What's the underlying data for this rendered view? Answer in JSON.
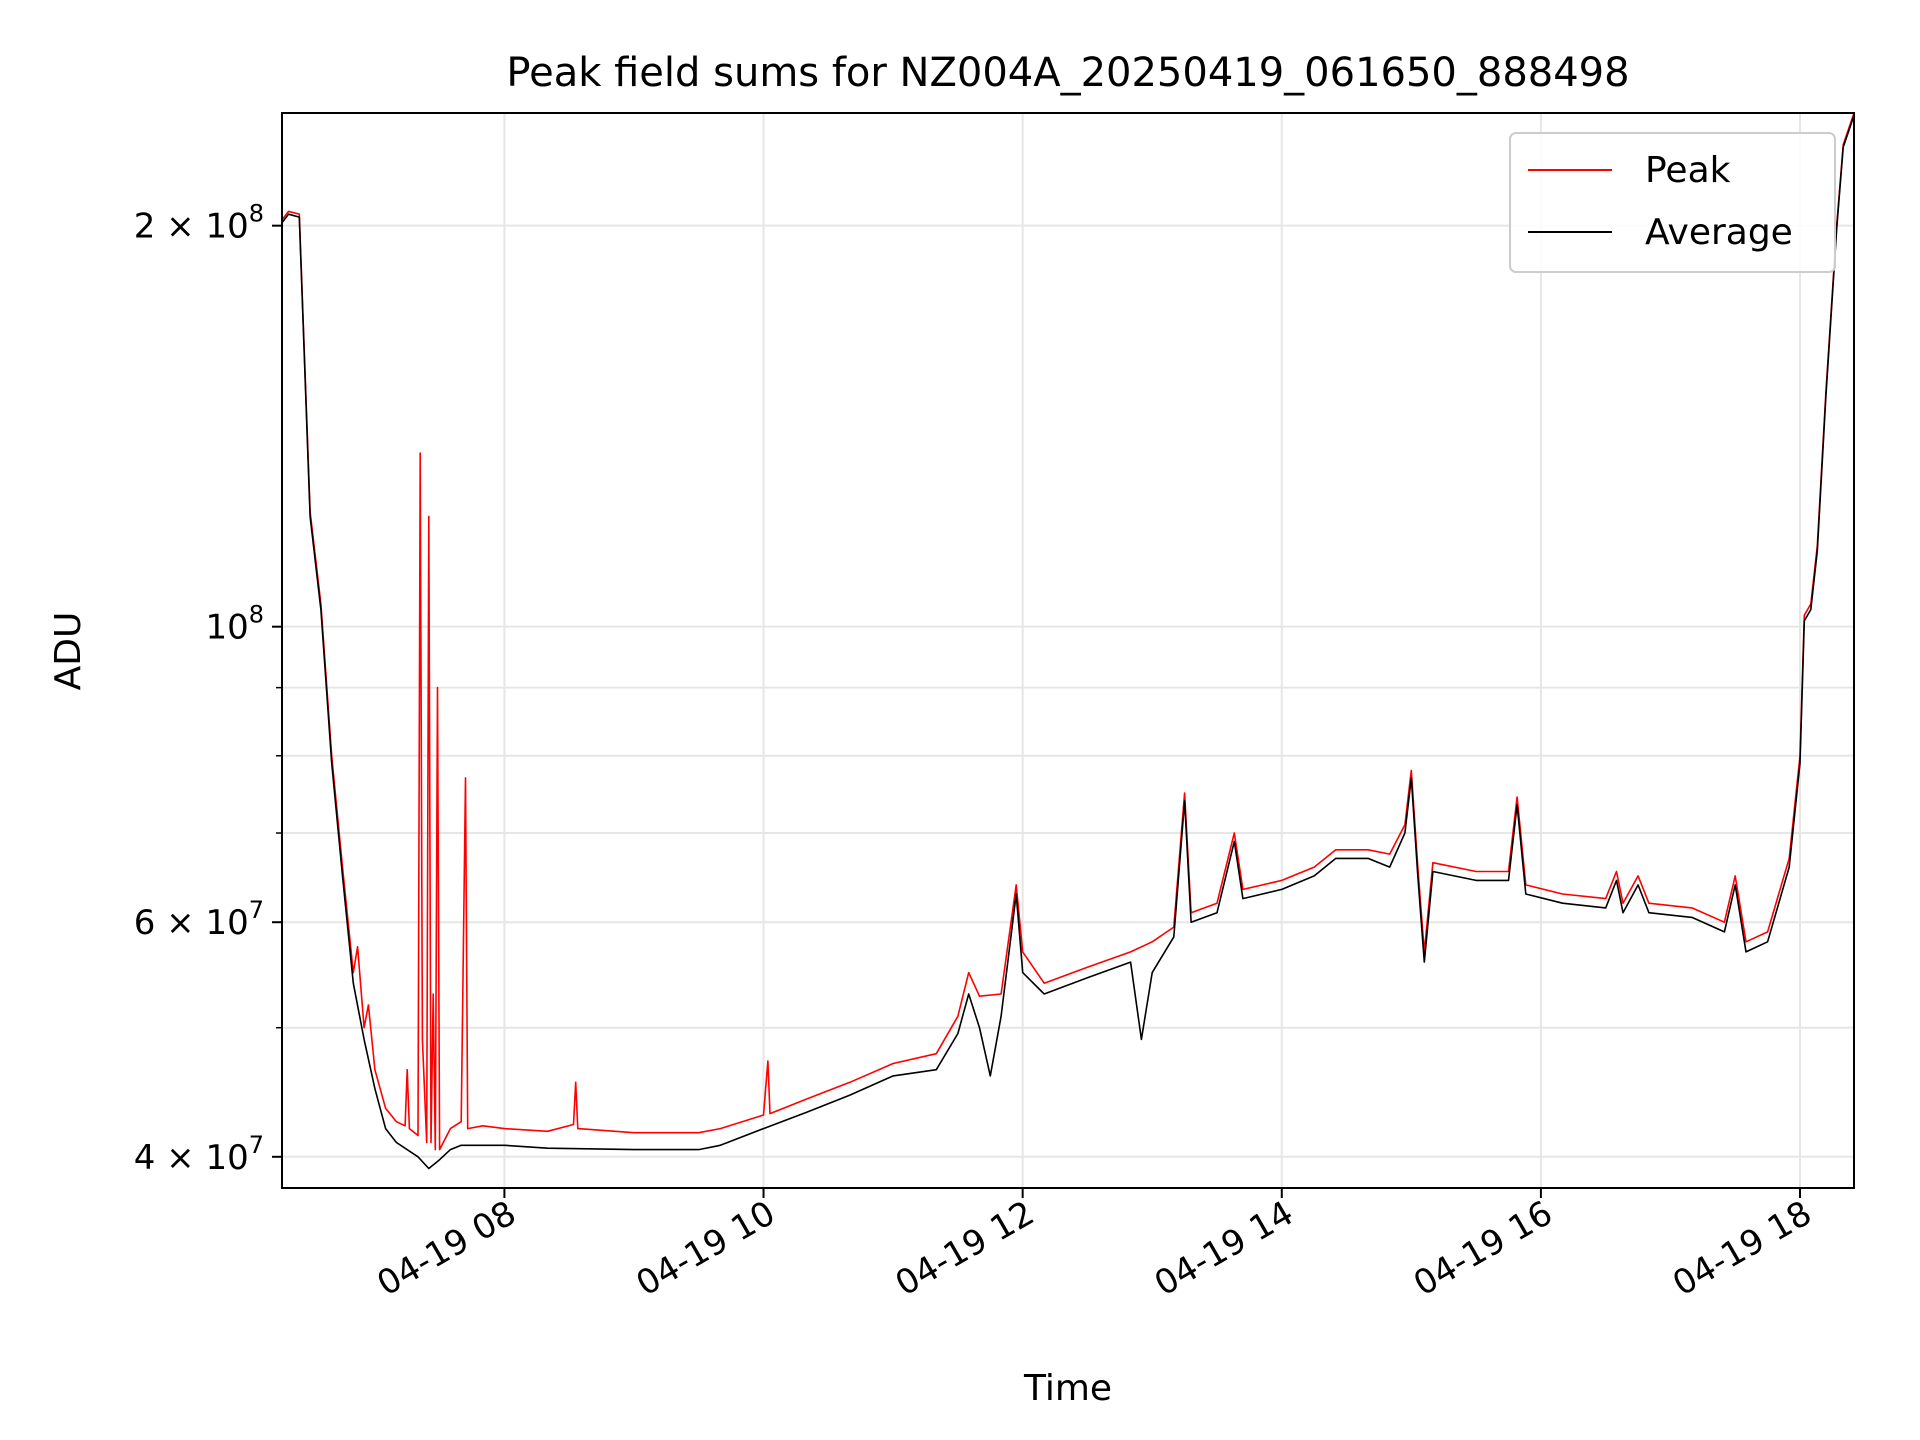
{
  "chart_data": {
    "type": "line",
    "title": "Peak field sums for NZ004A_20250419_061650_888498",
    "xlabel": "Time",
    "ylabel": "ADU",
    "y_scale": "log",
    "grid": true,
    "legend_position": "top-right",
    "x_range": [
      "2025-04-19 06:17",
      "2025-04-19 18:25"
    ],
    "y_range": [
      37900000,
      243000000
    ],
    "x_ticks": [
      {
        "time": "2025-04-19 08:00",
        "label": "04-19 08"
      },
      {
        "time": "2025-04-19 10:00",
        "label": "04-19 10"
      },
      {
        "time": "2025-04-19 12:00",
        "label": "04-19 12"
      },
      {
        "time": "2025-04-19 14:00",
        "label": "04-19 14"
      },
      {
        "time": "2025-04-19 16:00",
        "label": "04-19 16"
      },
      {
        "time": "2025-04-19 18:00",
        "label": "04-19 18"
      }
    ],
    "y_ticks": [
      {
        "value": 40000000,
        "base": "4",
        "exp": "7",
        "times": true
      },
      {
        "value": 60000000,
        "base": "6",
        "exp": "7",
        "times": true
      },
      {
        "value": 100000000,
        "base": "10",
        "exp": "8",
        "times": false
      },
      {
        "value": 200000000,
        "base": "2",
        "exp": "8",
        "times": true
      }
    ],
    "y_minor_ticks": [
      50000000,
      70000000,
      80000000,
      90000000
    ],
    "series": [
      {
        "name": "Peak",
        "color": "#ff0000",
        "points": [
          [
            "2025-04-19 06:17",
            202000000
          ],
          [
            "2025-04-19 06:20",
            205000000
          ],
          [
            "2025-04-19 06:25",
            204000000
          ],
          [
            "2025-04-19 06:30",
            122000000
          ],
          [
            "2025-04-19 06:35",
            104000000
          ],
          [
            "2025-04-19 06:40",
            80000000
          ],
          [
            "2025-04-19 06:45",
            66000000
          ],
          [
            "2025-04-19 06:50",
            55000000
          ],
          [
            "2025-04-19 06:52",
            57500000
          ],
          [
            "2025-04-19 06:55",
            50000000
          ],
          [
            "2025-04-19 06:57",
            52000000
          ],
          [
            "2025-04-19 07:00",
            46500000
          ],
          [
            "2025-04-19 07:05",
            43500000
          ],
          [
            "2025-04-19 07:10",
            42500000
          ],
          [
            "2025-04-19 07:14",
            42200000
          ],
          [
            "2025-04-19 07:15",
            46500000
          ],
          [
            "2025-04-19 07:16",
            42000000
          ],
          [
            "2025-04-19 07:20",
            41500000
          ],
          [
            "2025-04-19 07:21",
            135000000
          ],
          [
            "2025-04-19 07:22",
            49000000
          ],
          [
            "2025-04-19 07:24",
            41000000
          ],
          [
            "2025-04-19 07:25",
            121000000
          ],
          [
            "2025-04-19 07:26",
            41000000
          ],
          [
            "2025-04-19 07:27",
            53000000
          ],
          [
            "2025-04-19 07:28",
            40500000
          ],
          [
            "2025-04-19 07:29",
            90000000
          ],
          [
            "2025-04-19 07:30",
            40500000
          ],
          [
            "2025-04-19 07:35",
            42000000
          ],
          [
            "2025-04-19 07:40",
            42500000
          ],
          [
            "2025-04-19 07:42",
            77000000
          ],
          [
            "2025-04-19 07:43",
            42000000
          ],
          [
            "2025-04-19 07:50",
            42200000
          ],
          [
            "2025-04-19 08:00",
            42000000
          ],
          [
            "2025-04-19 08:20",
            41800000
          ],
          [
            "2025-04-19 08:32",
            42300000
          ],
          [
            "2025-04-19 08:33",
            45500000
          ],
          [
            "2025-04-19 08:34",
            42000000
          ],
          [
            "2025-04-19 09:00",
            41700000
          ],
          [
            "2025-04-19 09:30",
            41700000
          ],
          [
            "2025-04-19 09:40",
            42000000
          ],
          [
            "2025-04-19 10:00",
            43000000
          ],
          [
            "2025-04-19 10:02",
            47200000
          ],
          [
            "2025-04-19 10:03",
            43100000
          ],
          [
            "2025-04-19 10:20",
            44200000
          ],
          [
            "2025-04-19 10:40",
            45500000
          ],
          [
            "2025-04-19 11:00",
            47000000
          ],
          [
            "2025-04-19 11:20",
            47800000
          ],
          [
            "2025-04-19 11:30",
            51000000
          ],
          [
            "2025-04-19 11:35",
            55000000
          ],
          [
            "2025-04-19 11:40",
            52800000
          ],
          [
            "2025-04-19 11:50",
            53000000
          ],
          [
            "2025-04-19 11:57",
            64000000
          ],
          [
            "2025-04-19 12:00",
            57000000
          ],
          [
            "2025-04-19 12:10",
            54000000
          ],
          [
            "2025-04-19 12:30",
            55500000
          ],
          [
            "2025-04-19 12:50",
            57000000
          ],
          [
            "2025-04-19 13:00",
            58000000
          ],
          [
            "2025-04-19 13:10",
            59500000
          ],
          [
            "2025-04-19 13:15",
            75000000
          ],
          [
            "2025-04-19 13:18",
            61000000
          ],
          [
            "2025-04-19 13:30",
            62000000
          ],
          [
            "2025-04-19 13:38",
            70000000
          ],
          [
            "2025-04-19 13:42",
            63500000
          ],
          [
            "2025-04-19 14:00",
            64500000
          ],
          [
            "2025-04-19 14:15",
            66000000
          ],
          [
            "2025-04-19 14:25",
            68000000
          ],
          [
            "2025-04-19 14:40",
            68000000
          ],
          [
            "2025-04-19 14:50",
            67500000
          ],
          [
            "2025-04-19 14:57",
            71000000
          ],
          [
            "2025-04-19 15:00",
            78000000
          ],
          [
            "2025-04-19 15:03",
            66000000
          ],
          [
            "2025-04-19 15:06",
            57000000
          ],
          [
            "2025-04-19 15:10",
            66500000
          ],
          [
            "2025-04-19 15:30",
            65500000
          ],
          [
            "2025-04-19 15:45",
            65500000
          ],
          [
            "2025-04-19 15:49",
            74500000
          ],
          [
            "2025-04-19 15:53",
            64000000
          ],
          [
            "2025-04-19 16:10",
            63000000
          ],
          [
            "2025-04-19 16:30",
            62500000
          ],
          [
            "2025-04-19 16:35",
            65500000
          ],
          [
            "2025-04-19 16:38",
            62000000
          ],
          [
            "2025-04-19 16:45",
            65000000
          ],
          [
            "2025-04-19 16:50",
            62000000
          ],
          [
            "2025-04-19 17:10",
            61500000
          ],
          [
            "2025-04-19 17:25",
            60000000
          ],
          [
            "2025-04-19 17:30",
            65000000
          ],
          [
            "2025-04-19 17:35",
            58000000
          ],
          [
            "2025-04-19 17:45",
            59000000
          ],
          [
            "2025-04-19 17:55",
            67000000
          ],
          [
            "2025-04-19 18:00",
            80000000
          ],
          [
            "2025-04-19 18:02",
            102000000
          ],
          [
            "2025-04-19 18:05",
            104000000
          ],
          [
            "2025-04-19 18:08",
            115000000
          ],
          [
            "2025-04-19 18:12",
            150000000
          ],
          [
            "2025-04-19 18:17",
            200000000
          ],
          [
            "2025-04-19 18:20",
            230000000
          ],
          [
            "2025-04-19 18:25",
            243000000
          ]
        ]
      },
      {
        "name": "Average",
        "color": "#000000",
        "points": [
          [
            "2025-04-19 06:17",
            201000000
          ],
          [
            "2025-04-19 06:20",
            204000000
          ],
          [
            "2025-04-19 06:25",
            203000000
          ],
          [
            "2025-04-19 06:30",
            121000000
          ],
          [
            "2025-04-19 06:35",
            103000000
          ],
          [
            "2025-04-19 06:40",
            79000000
          ],
          [
            "2025-04-19 06:45",
            65000000
          ],
          [
            "2025-04-19 06:50",
            54000000
          ],
          [
            "2025-04-19 06:55",
            49000000
          ],
          [
            "2025-04-19 07:00",
            45000000
          ],
          [
            "2025-04-19 07:05",
            42000000
          ],
          [
            "2025-04-19 07:10",
            41000000
          ],
          [
            "2025-04-19 07:20",
            40000000
          ],
          [
            "2025-04-19 07:25",
            39200000
          ],
          [
            "2025-04-19 07:30",
            39800000
          ],
          [
            "2025-04-19 07:35",
            40500000
          ],
          [
            "2025-04-19 07:40",
            40800000
          ],
          [
            "2025-04-19 08:00",
            40800000
          ],
          [
            "2025-04-19 08:20",
            40600000
          ],
          [
            "2025-04-19 09:00",
            40500000
          ],
          [
            "2025-04-19 09:30",
            40500000
          ],
          [
            "2025-04-19 09:40",
            40800000
          ],
          [
            "2025-04-19 10:00",
            42000000
          ],
          [
            "2025-04-19 10:20",
            43200000
          ],
          [
            "2025-04-19 10:40",
            44500000
          ],
          [
            "2025-04-19 11:00",
            46000000
          ],
          [
            "2025-04-19 11:20",
            46500000
          ],
          [
            "2025-04-19 11:30",
            49500000
          ],
          [
            "2025-04-19 11:35",
            53000000
          ],
          [
            "2025-04-19 11:40",
            50000000
          ],
          [
            "2025-04-19 11:45",
            46000000
          ],
          [
            "2025-04-19 11:50",
            51000000
          ],
          [
            "2025-04-19 11:57",
            63000000
          ],
          [
            "2025-04-19 12:00",
            55000000
          ],
          [
            "2025-04-19 12:10",
            53000000
          ],
          [
            "2025-04-19 12:30",
            54500000
          ],
          [
            "2025-04-19 12:50",
            56000000
          ],
          [
            "2025-04-19 12:55",
            49000000
          ],
          [
            "2025-04-19 13:00",
            55000000
          ],
          [
            "2025-04-19 13:10",
            58500000
          ],
          [
            "2025-04-19 13:15",
            74000000
          ],
          [
            "2025-04-19 13:18",
            60000000
          ],
          [
            "2025-04-19 13:30",
            61000000
          ],
          [
            "2025-04-19 13:38",
            69000000
          ],
          [
            "2025-04-19 13:42",
            62500000
          ],
          [
            "2025-04-19 14:00",
            63500000
          ],
          [
            "2025-04-19 14:15",
            65000000
          ],
          [
            "2025-04-19 14:25",
            67000000
          ],
          [
            "2025-04-19 14:40",
            67000000
          ],
          [
            "2025-04-19 14:50",
            66000000
          ],
          [
            "2025-04-19 14:57",
            70000000
          ],
          [
            "2025-04-19 15:00",
            77000000
          ],
          [
            "2025-04-19 15:03",
            65000000
          ],
          [
            "2025-04-19 15:06",
            56000000
          ],
          [
            "2025-04-19 15:10",
            65500000
          ],
          [
            "2025-04-19 15:30",
            64500000
          ],
          [
            "2025-04-19 15:45",
            64500000
          ],
          [
            "2025-04-19 15:49",
            73500000
          ],
          [
            "2025-04-19 15:53",
            63000000
          ],
          [
            "2025-04-19 16:10",
            62000000
          ],
          [
            "2025-04-19 16:30",
            61500000
          ],
          [
            "2025-04-19 16:35",
            64500000
          ],
          [
            "2025-04-19 16:38",
            61000000
          ],
          [
            "2025-04-19 16:45",
            64000000
          ],
          [
            "2025-04-19 16:50",
            61000000
          ],
          [
            "2025-04-19 17:10",
            60500000
          ],
          [
            "2025-04-19 17:25",
            59000000
          ],
          [
            "2025-04-19 17:30",
            64000000
          ],
          [
            "2025-04-19 17:35",
            57000000
          ],
          [
            "2025-04-19 17:45",
            58000000
          ],
          [
            "2025-04-19 17:55",
            66000000
          ],
          [
            "2025-04-19 18:00",
            79000000
          ],
          [
            "2025-04-19 18:02",
            101000000
          ],
          [
            "2025-04-19 18:05",
            103000000
          ],
          [
            "2025-04-19 18:08",
            114000000
          ],
          [
            "2025-04-19 18:12",
            149000000
          ],
          [
            "2025-04-19 18:17",
            199000000
          ],
          [
            "2025-04-19 18:20",
            229000000
          ],
          [
            "2025-04-19 18:25",
            242000000
          ]
        ]
      }
    ]
  }
}
